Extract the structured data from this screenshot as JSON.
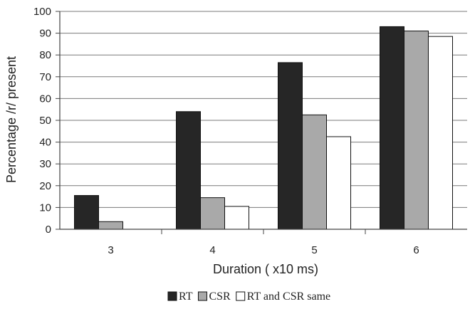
{
  "chart_data": {
    "type": "bar",
    "title": "",
    "xlabel": "Duration ( x10 ms)",
    "ylabel": "Percentage /r/ present",
    "ylim": [
      0,
      100
    ],
    "ytick_step": 10,
    "grid": true,
    "legend_position": "bottom",
    "categories": [
      "3",
      "4",
      "5",
      "6"
    ],
    "series": [
      {
        "name": "RT",
        "values": [
          15.5,
          54,
          76.5,
          93
        ],
        "color": "#262626"
      },
      {
        "name": "CSR",
        "values": [
          3.5,
          14.5,
          52.5,
          91
        ],
        "color": "#a9a9a9"
      },
      {
        "name": "RT and CSR same",
        "values": [
          0,
          10.5,
          42.5,
          88.5
        ],
        "color": "#ffffff"
      }
    ]
  }
}
